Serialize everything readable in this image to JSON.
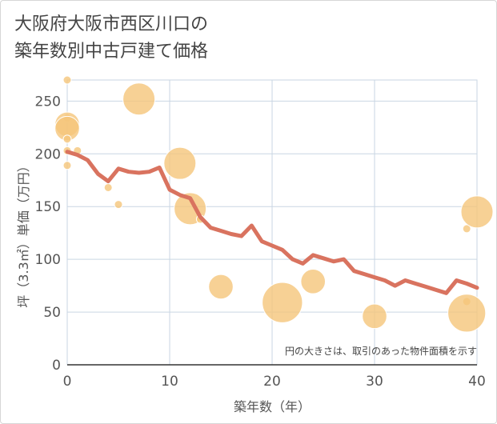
{
  "chart_data": {
    "type": "scatter+line",
    "title": "大阪府大阪市西区川口の\n築年数別中古戸建て価格",
    "xlabel": "築年数（年）",
    "ylabel": "坪（3.3㎡）単価（万円）",
    "xlim": [
      0,
      40
    ],
    "ylim": [
      0,
      270
    ],
    "x_ticks": [
      0,
      10,
      20,
      30,
      40
    ],
    "y_ticks": [
      0,
      50,
      100,
      150,
      200,
      250
    ],
    "note": "円の大きさは、取引のあった物件面積を示す",
    "grid": true,
    "colors": {
      "line": "#d9735f",
      "bubble": "#f5c57a",
      "grid": "#c9d6e3"
    },
    "bubbles": [
      {
        "x": 0,
        "y": 270,
        "size": 1
      },
      {
        "x": 0,
        "y": 234,
        "size": 1
      },
      {
        "x": 0,
        "y": 228,
        "size": 2
      },
      {
        "x": 0,
        "y": 224,
        "size": 2
      },
      {
        "x": 0,
        "y": 214,
        "size": 1
      },
      {
        "x": 0,
        "y": 203,
        "size": 1
      },
      {
        "x": 0,
        "y": 189,
        "size": 1
      },
      {
        "x": 1,
        "y": 203,
        "size": 1
      },
      {
        "x": 4,
        "y": 168,
        "size": 1
      },
      {
        "x": 5,
        "y": 152,
        "size": 1
      },
      {
        "x": 7,
        "y": 252,
        "size": 4
      },
      {
        "x": 11,
        "y": 191,
        "size": 4
      },
      {
        "x": 12,
        "y": 148,
        "size": 4
      },
      {
        "x": 13,
        "y": 138,
        "size": 1
      },
      {
        "x": 15,
        "y": 74,
        "size": 2
      },
      {
        "x": 21,
        "y": 59,
        "size": 7
      },
      {
        "x": 24,
        "y": 79,
        "size": 2
      },
      {
        "x": 30,
        "y": 46,
        "size": 2
      },
      {
        "x": 39,
        "y": 129,
        "size": 1
      },
      {
        "x": 39,
        "y": 60,
        "size": 1
      },
      {
        "x": 39,
        "y": 49,
        "size": 6
      },
      {
        "x": 40,
        "y": 145,
        "size": 4
      }
    ],
    "series": [
      {
        "name": "平均坪単価",
        "x": [
          0,
          1,
          2,
          3,
          4,
          5,
          6,
          7,
          8,
          9,
          10,
          11,
          12,
          13,
          14,
          15,
          16,
          17,
          18,
          19,
          20,
          21,
          22,
          23,
          24,
          25,
          26,
          27,
          28,
          29,
          30,
          31,
          32,
          33,
          34,
          35,
          36,
          37,
          38,
          39,
          40
        ],
        "y": [
          202,
          199,
          194,
          181,
          174,
          186,
          183,
          182,
          183,
          187,
          166,
          161,
          158,
          140,
          130,
          127,
          124,
          122,
          132,
          117,
          113,
          109,
          100,
          96,
          104,
          101,
          98,
          100,
          89,
          86,
          83,
          80,
          75,
          80,
          77,
          74,
          71,
          68,
          80,
          77,
          73
        ]
      }
    ]
  }
}
